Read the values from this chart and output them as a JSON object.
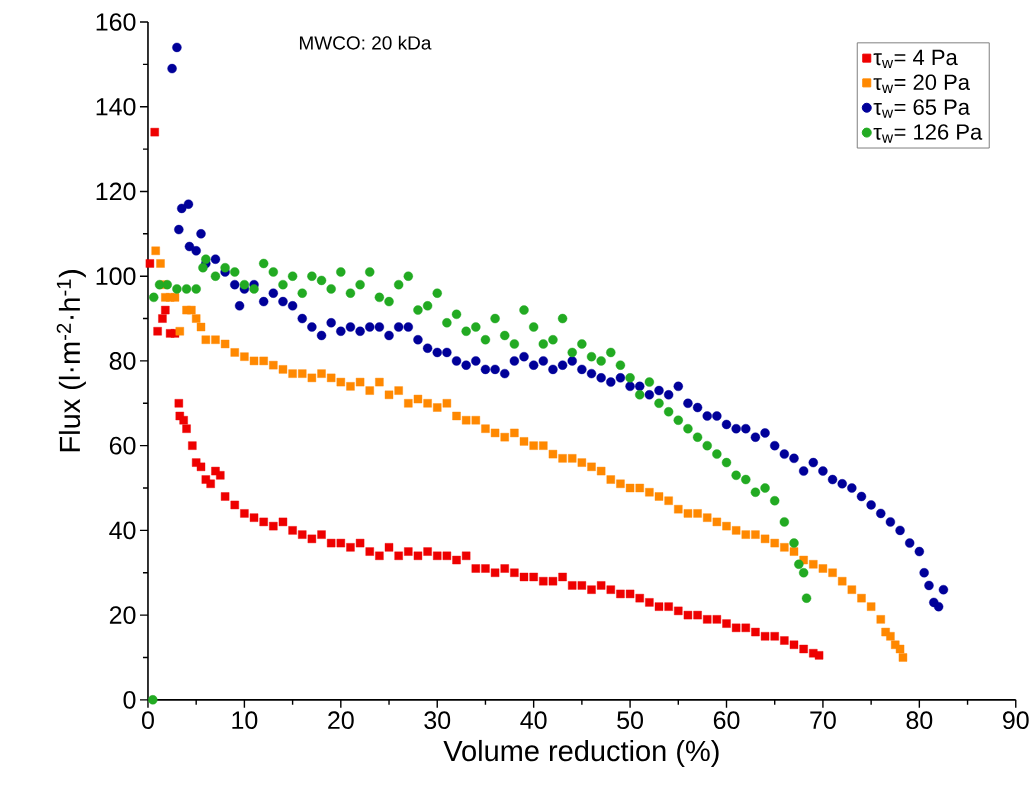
{
  "chart_data": {
    "type": "scatter",
    "xlabel": "Volume reduction (%)",
    "ylabel": "Flux (l·m$^{-2}$·h$^{-1}$)",
    "annotations": [
      "MWCO: 20 kDa"
    ],
    "xlim": [
      0,
      90
    ],
    "ylim": [
      0,
      160
    ],
    "xticks": [
      0,
      10,
      20,
      30,
      40,
      50,
      60,
      70,
      80,
      90
    ],
    "yticks": [
      0,
      20,
      40,
      60,
      80,
      100,
      120,
      140,
      160
    ],
    "grid": false,
    "legend": "top right",
    "series": [
      {
        "name": "τ$_{w}$= 4 Pa",
        "color": "#ee0000",
        "marker": "square",
        "x": [
          0.2,
          0.7,
          1.0,
          1.5,
          1.8,
          2.3,
          2.8,
          3.2,
          3.3,
          3.7,
          4.0,
          4.6,
          5.0,
          5.5,
          6,
          6.5,
          7,
          7.5,
          8,
          9,
          10,
          11,
          12,
          13,
          14,
          15,
          16,
          17,
          18,
          19,
          20,
          21,
          22,
          23,
          24,
          25,
          26,
          27,
          28,
          29,
          30,
          31,
          32,
          33,
          34,
          35,
          36,
          37,
          38,
          39,
          40,
          41,
          42,
          43,
          44,
          45,
          46,
          47,
          48,
          49,
          50,
          51,
          52,
          53,
          54,
          55,
          56,
          57,
          58,
          59,
          60,
          61,
          62,
          63,
          64,
          65,
          66,
          67,
          68,
          69,
          69.6
        ],
        "values": [
          103,
          134,
          87,
          90,
          92,
          86.5,
          86.5,
          70,
          67,
          66,
          64,
          60,
          56,
          55,
          52,
          51,
          54,
          53,
          48,
          46,
          44,
          43,
          42,
          41,
          42,
          40,
          39,
          38,
          39,
          37,
          37,
          36,
          37,
          35,
          34,
          36,
          34,
          35,
          34,
          35,
          34,
          34,
          33,
          34,
          31,
          31,
          30,
          31,
          30,
          29,
          29,
          28,
          28,
          29,
          27,
          27,
          26,
          27,
          26,
          25,
          25,
          24,
          23,
          22,
          22,
          21,
          20,
          20,
          19,
          19,
          18,
          17,
          17,
          16,
          15,
          15,
          14,
          13,
          12,
          11,
          10.5
        ]
      },
      {
        "name": "τ$_{w}$= 20 Pa",
        "color": "#ff8800",
        "marker": "square",
        "x": [
          0.8,
          1.3,
          1.6,
          1.8,
          2.3,
          2.8,
          3.3,
          4,
          4.5,
          5,
          5.5,
          6,
          7,
          8,
          9,
          10,
          11,
          12,
          13,
          14,
          15,
          16,
          17,
          18,
          19,
          20,
          21,
          22,
          23,
          24,
          25,
          26,
          27,
          28,
          29,
          30,
          31,
          32,
          33,
          34,
          35,
          36,
          37,
          38,
          39,
          40,
          41,
          42,
          43,
          44,
          45,
          46,
          47,
          48,
          49,
          50,
          51,
          52,
          53,
          54,
          55,
          56,
          57,
          58,
          59,
          60,
          61,
          62,
          63,
          64,
          65,
          66,
          67,
          68,
          69,
          70,
          71,
          72,
          73,
          74,
          75,
          76,
          76.5,
          77,
          77.5,
          78,
          78.3
        ],
        "values": [
          106,
          103,
          98,
          95,
          95,
          95,
          87,
          92,
          92,
          90,
          88,
          85,
          85,
          84,
          82,
          81,
          80,
          80,
          79,
          78,
          77,
          77,
          76,
          77,
          76,
          75,
          74,
          75,
          73,
          75,
          72,
          73,
          70,
          71,
          70,
          69,
          70,
          67,
          66,
          66,
          64,
          63,
          62,
          63,
          61,
          60,
          60,
          58,
          57,
          57,
          56,
          55,
          54,
          52,
          51,
          50,
          50,
          49,
          48,
          47,
          45,
          44,
          44,
          43,
          42,
          41,
          40,
          39,
          39,
          38,
          37,
          36,
          35,
          33,
          32,
          31,
          30,
          28,
          26,
          24,
          22,
          19,
          16,
          15,
          13,
          12,
          10
        ]
      },
      {
        "name": "τ$_{w}$= 65 Pa",
        "color": "#000099",
        "marker": "circle",
        "x": [
          2.5,
          3.0,
          3.2,
          3.5,
          4.2,
          4.3,
          5.0,
          5.5,
          6,
          7,
          8,
          9,
          9.5,
          10,
          11,
          12,
          13,
          14,
          15,
          16,
          17,
          18,
          19,
          20,
          21,
          22,
          23,
          24,
          25,
          26,
          27,
          28,
          29,
          30,
          31,
          32,
          33,
          34,
          35,
          36,
          37,
          38,
          39,
          40,
          41,
          42,
          43,
          44,
          45,
          46,
          47,
          48,
          49,
          50,
          51,
          52,
          53,
          54,
          55,
          56,
          57,
          58,
          59,
          60,
          61,
          62,
          63,
          64,
          65,
          66,
          67,
          68,
          69,
          70,
          71,
          72,
          73,
          74,
          75,
          76,
          77,
          78,
          79,
          80,
          80.5,
          81,
          81.5,
          82,
          82.5
        ],
        "values": [
          149,
          154,
          111,
          116,
          117,
          107,
          106,
          110,
          103,
          104,
          101,
          98,
          93,
          97,
          98,
          94,
          96,
          94,
          93,
          90,
          88,
          86,
          89,
          87,
          88,
          87,
          88,
          88,
          86,
          88,
          88,
          85,
          83,
          82,
          82,
          80,
          79,
          80,
          78,
          78,
          77,
          80,
          81,
          79,
          80,
          78,
          79,
          80,
          78,
          77,
          76,
          75,
          76,
          74,
          74,
          72,
          73,
          72,
          74,
          70,
          69,
          67,
          67,
          65,
          64,
          64,
          62,
          63,
          60,
          58,
          57,
          54,
          56,
          54,
          52,
          51,
          50,
          48,
          46,
          44,
          42,
          40,
          37,
          35,
          30,
          27,
          23,
          22,
          26
        ]
      },
      {
        "name": "τ$_{w}$= 126 Pa",
        "color": "#22aa22",
        "marker": "circle",
        "x": [
          0.5,
          0.6,
          1.2,
          2,
          3,
          4,
          5,
          5.7,
          6,
          7,
          8,
          9,
          10,
          11,
          12,
          13,
          14,
          15,
          16,
          17,
          18,
          19,
          20,
          21,
          22,
          23,
          24,
          25,
          26,
          27,
          28,
          29,
          30,
          31,
          32,
          33,
          34,
          35,
          36,
          37,
          38,
          39,
          40,
          41,
          42,
          43,
          44,
          45,
          46,
          47,
          48,
          49,
          50,
          51,
          52,
          53,
          54,
          55,
          56,
          57,
          58,
          59,
          60,
          61,
          62,
          63,
          64,
          65,
          66,
          67,
          67.5,
          68,
          68.3
        ],
        "values": [
          0,
          95,
          98,
          98,
          97,
          97,
          97,
          102,
          104,
          100,
          102,
          101,
          98,
          97,
          103,
          101,
          98,
          100,
          96,
          100,
          99,
          97,
          101,
          96,
          98,
          101,
          95,
          94,
          98,
          100,
          92,
          93,
          96,
          89,
          91,
          87,
          88,
          85,
          90,
          86,
          84,
          92,
          88,
          84,
          85,
          90,
          82,
          84,
          81,
          80,
          82,
          79,
          76,
          72,
          75,
          70,
          68,
          66,
          64,
          62,
          60,
          58,
          56,
          53,
          52,
          49,
          50,
          47,
          42,
          37,
          32,
          30,
          24
        ]
      }
    ]
  }
}
